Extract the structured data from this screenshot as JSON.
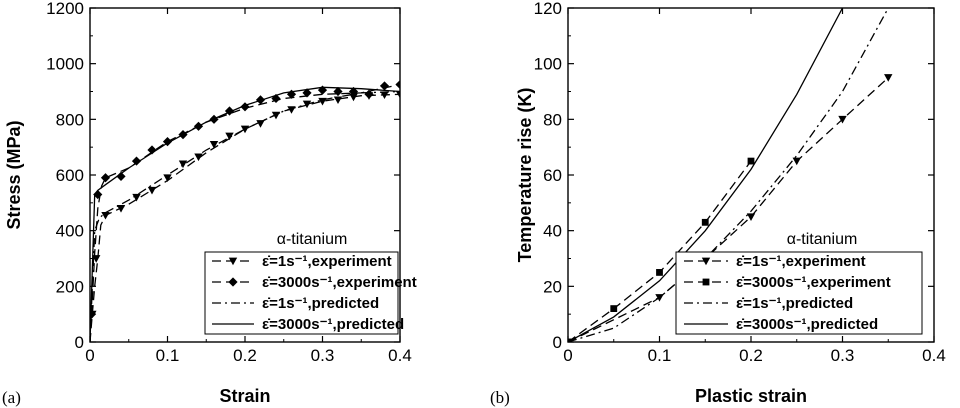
{
  "chart_data": [
    {
      "type": "line",
      "panel_label": "(a)",
      "xlabel": "Strain",
      "ylabel": "Stress (MPa)",
      "xlim": [
        0,
        0.4
      ],
      "ylim": [
        0,
        1200
      ],
      "xticks": [
        "0",
        "0.1",
        "0.2",
        "0.3",
        "0.4"
      ],
      "yticks": [
        "0",
        "200",
        "400",
        "600",
        "800",
        "1000",
        "1200"
      ],
      "legend_title": "α-titanium",
      "legend_position": "bottom-right",
      "series": [
        {
          "name": "ε̇=1s⁻¹,experiment",
          "style": "dashed",
          "marker": "triangle-down",
          "line": [
            [
              0,
              0
            ],
            [
              0.003,
              100
            ],
            [
              0.006,
              200
            ],
            [
              0.01,
              300
            ],
            [
              0.014,
              420
            ],
            [
              0.02,
              455
            ],
            [
              0.05,
              495
            ],
            [
              0.1,
              580
            ],
            [
              0.15,
              680
            ],
            [
              0.2,
              765
            ],
            [
              0.25,
              830
            ],
            [
              0.3,
              865
            ],
            [
              0.35,
              885
            ],
            [
              0.4,
              890
            ]
          ],
          "points": [
            [
              0.003,
              100
            ],
            [
              0.008,
              300
            ],
            [
              0.02,
              455
            ],
            [
              0.04,
              480
            ],
            [
              0.06,
              520
            ],
            [
              0.08,
              545
            ],
            [
              0.1,
              590
            ],
            [
              0.12,
              640
            ],
            [
              0.14,
              665
            ],
            [
              0.16,
              710
            ],
            [
              0.18,
              740
            ],
            [
              0.2,
              765
            ],
            [
              0.22,
              785
            ],
            [
              0.24,
              815
            ],
            [
              0.26,
              835
            ],
            [
              0.28,
              855
            ],
            [
              0.3,
              865
            ],
            [
              0.32,
              870
            ],
            [
              0.34,
              880
            ],
            [
              0.36,
              885
            ],
            [
              0.38,
              888
            ],
            [
              0.4,
              890
            ]
          ]
        },
        {
          "name": "ε̇=3000s⁻¹,experiment",
          "style": "dashed",
          "marker": "diamond",
          "line": [
            [
              0,
              0
            ],
            [
              0.003,
              150
            ],
            [
              0.006,
              320
            ],
            [
              0.01,
              480
            ],
            [
              0.015,
              560
            ],
            [
              0.02,
              590
            ],
            [
              0.05,
              625
            ],
            [
              0.1,
              720
            ],
            [
              0.15,
              790
            ],
            [
              0.2,
              840
            ],
            [
              0.25,
              875
            ],
            [
              0.3,
              890
            ],
            [
              0.35,
              895
            ],
            [
              0.4,
              925
            ]
          ],
          "points": [
            [
              0.002,
              100
            ],
            [
              0.01,
              530
            ],
            [
              0.02,
              590
            ],
            [
              0.04,
              595
            ],
            [
              0.06,
              650
            ],
            [
              0.08,
              690
            ],
            [
              0.1,
              720
            ],
            [
              0.12,
              745
            ],
            [
              0.14,
              775
            ],
            [
              0.16,
              800
            ],
            [
              0.18,
              830
            ],
            [
              0.2,
              845
            ],
            [
              0.22,
              870
            ],
            [
              0.24,
              875
            ],
            [
              0.26,
              890
            ],
            [
              0.28,
              895
            ],
            [
              0.3,
              905
            ],
            [
              0.32,
              900
            ],
            [
              0.34,
              900
            ],
            [
              0.36,
              890
            ],
            [
              0.38,
              920
            ],
            [
              0.4,
              925
            ]
          ]
        },
        {
          "name": "ε̇=1s⁻¹,predicted",
          "style": "dash-dot",
          "marker": "none",
          "line": [
            [
              0,
              0
            ],
            [
              0.006,
              400
            ],
            [
              0.012,
              445
            ],
            [
              0.02,
              465
            ],
            [
              0.05,
              510
            ],
            [
              0.1,
              600
            ],
            [
              0.15,
              690
            ],
            [
              0.2,
              765
            ],
            [
              0.25,
              830
            ],
            [
              0.3,
              870
            ],
            [
              0.35,
              895
            ],
            [
              0.4,
              900
            ]
          ]
        },
        {
          "name": "ε̇=3000s⁻¹,predicted",
          "style": "solid",
          "marker": "none",
          "line": [
            [
              0,
              0
            ],
            [
              0.006,
              530
            ],
            [
              0.01,
              545
            ],
            [
              0.02,
              565
            ],
            [
              0.05,
              625
            ],
            [
              0.1,
              715
            ],
            [
              0.15,
              790
            ],
            [
              0.2,
              850
            ],
            [
              0.25,
              895
            ],
            [
              0.3,
              915
            ],
            [
              0.35,
              910
            ],
            [
              0.4,
              900
            ]
          ]
        }
      ]
    },
    {
      "type": "line",
      "panel_label": "(b)",
      "xlabel": "Plastic strain",
      "ylabel": "Temperature rise (K)",
      "xlim": [
        0,
        0.4
      ],
      "ylim": [
        0,
        120
      ],
      "xticks": [
        "0",
        "0.1",
        "0.2",
        "0.3",
        "0.4"
      ],
      "yticks": [
        "0",
        "20",
        "40",
        "60",
        "80",
        "100",
        "120"
      ],
      "legend_title": "α-titanium",
      "legend_position": "bottom-right",
      "series": [
        {
          "name": "ε̇=1s⁻¹,experiment",
          "style": "dashed",
          "marker": "triangle-down",
          "line": [
            [
              0,
              0
            ],
            [
              0.05,
              8
            ],
            [
              0.1,
              16
            ],
            [
              0.15,
              30
            ],
            [
              0.2,
              45
            ],
            [
              0.25,
              65
            ],
            [
              0.3,
              80
            ],
            [
              0.35,
              95
            ]
          ],
          "points": [
            [
              0,
              0
            ],
            [
              0.1,
              16
            ],
            [
              0.15,
              30
            ],
            [
              0.2,
              45
            ],
            [
              0.25,
              65
            ],
            [
              0.3,
              80
            ],
            [
              0.35,
              95
            ]
          ]
        },
        {
          "name": "ε̇=3000s⁻¹,experiment",
          "style": "dashed",
          "marker": "square",
          "line": [
            [
              0,
              0
            ],
            [
              0.05,
              12
            ],
            [
              0.1,
              25
            ],
            [
              0.15,
              43
            ],
            [
              0.2,
              65
            ]
          ],
          "points": [
            [
              0,
              0
            ],
            [
              0.05,
              12
            ],
            [
              0.1,
              25
            ],
            [
              0.15,
              43
            ],
            [
              0.2,
              65
            ]
          ]
        },
        {
          "name": "ε̇=1s⁻¹,predicted",
          "style": "dash-dot",
          "marker": "none",
          "line": [
            [
              0,
              0
            ],
            [
              0.05,
              5
            ],
            [
              0.1,
              16
            ],
            [
              0.15,
              30
            ],
            [
              0.2,
              47
            ],
            [
              0.25,
              67
            ],
            [
              0.3,
              90
            ],
            [
              0.35,
              120
            ]
          ]
        },
        {
          "name": "ε̇=3000s⁻¹,predicted",
          "style": "solid",
          "marker": "none",
          "line": [
            [
              0,
              0
            ],
            [
              0.05,
              9
            ],
            [
              0.1,
              22
            ],
            [
              0.15,
              40
            ],
            [
              0.2,
              62
            ],
            [
              0.25,
              89
            ],
            [
              0.3,
              120
            ]
          ]
        }
      ]
    }
  ]
}
